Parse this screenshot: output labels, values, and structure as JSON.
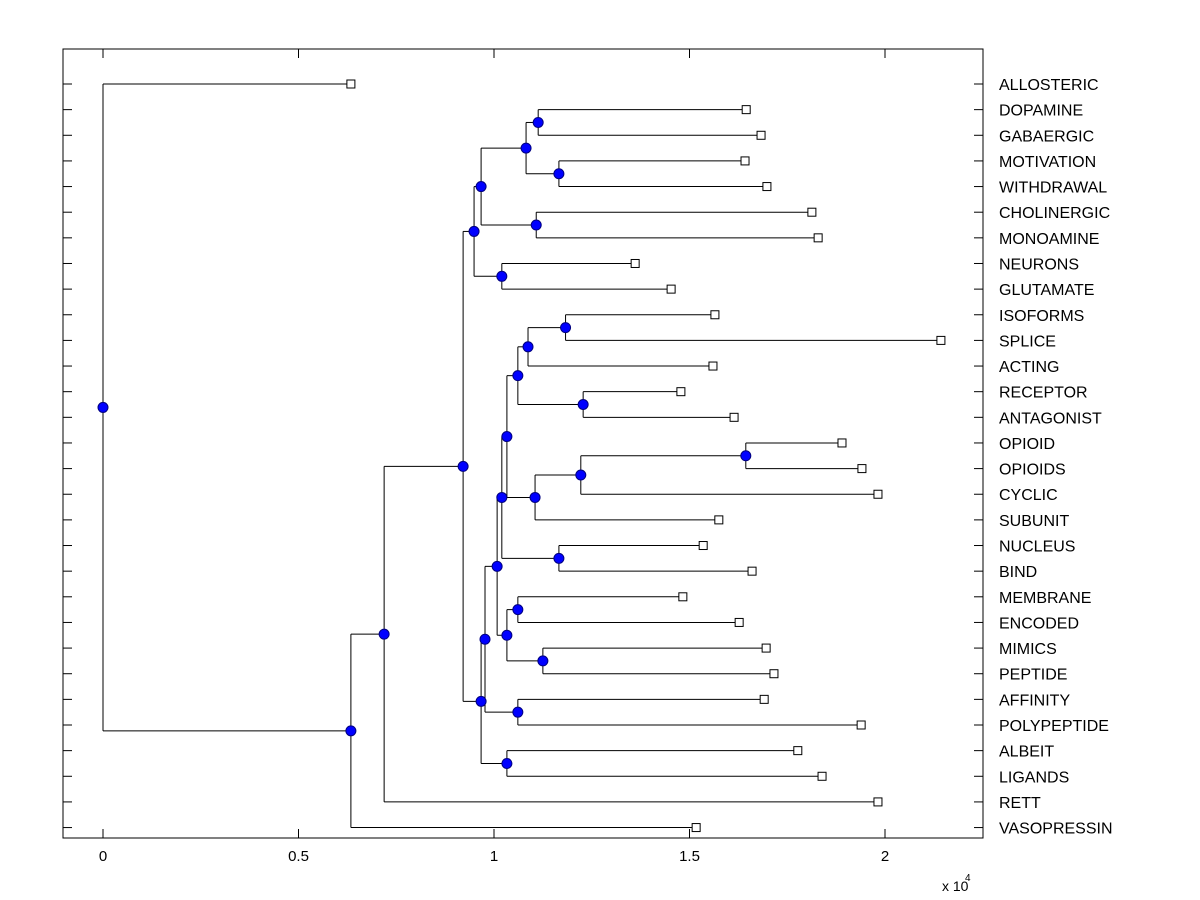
{
  "chart_data": {
    "type": "dendrogram",
    "title": "",
    "xlabel": "",
    "ylabel": "",
    "x_multiplier_label": "x 10",
    "x_multiplier_exponent": "4",
    "xlim": [
      -0.1,
      2.25
    ],
    "xticks": [
      0,
      0.5,
      1,
      1.5,
      2
    ],
    "xtick_labels": [
      "0",
      "0.5",
      "1",
      "1.5",
      "2"
    ],
    "grid": false,
    "colors": {
      "node_fill": "#0000ff",
      "node_edge": "#000080",
      "line": "#000000",
      "leaf_fill": "#ffffff"
    },
    "leaves": [
      {
        "label": "ALLOSTERIC",
        "x": 0.634
      },
      {
        "label": "DOPAMINE",
        "x": 1.645
      },
      {
        "label": "GABAERGIC",
        "x": 1.683
      },
      {
        "label": "MOTIVATION",
        "x": 1.642
      },
      {
        "label": "WITHDRAWAL",
        "x": 1.698
      },
      {
        "label": "CHOLINERGIC",
        "x": 1.813
      },
      {
        "label": "MONOAMINE",
        "x": 1.829
      },
      {
        "label": "NEURONS",
        "x": 1.361
      },
      {
        "label": "GLUTAMATE",
        "x": 1.453
      },
      {
        "label": "ISOFORMS",
        "x": 1.565
      },
      {
        "label": "SPLICE",
        "x": 2.143
      },
      {
        "label": "ACTING",
        "x": 1.56
      },
      {
        "label": "RECEPTOR",
        "x": 1.478
      },
      {
        "label": "ANTAGONIST",
        "x": 1.614
      },
      {
        "label": "OPIOID",
        "x": 1.89
      },
      {
        "label": "OPIOIDS",
        "x": 1.941
      },
      {
        "label": "CYCLIC",
        "x": 1.982
      },
      {
        "label": "SUBUNIT",
        "x": 1.575
      },
      {
        "label": "NUCLEUS",
        "x": 1.535
      },
      {
        "label": "BIND",
        "x": 1.66
      },
      {
        "label": "MEMBRANE",
        "x": 1.483
      },
      {
        "label": "ENCODED",
        "x": 1.627
      },
      {
        "label": "MIMICS",
        "x": 1.696
      },
      {
        "label": "PEPTIDE",
        "x": 1.716
      },
      {
        "label": "AFFINITY",
        "x": 1.691
      },
      {
        "label": "POLYPEPTIDE",
        "x": 1.939
      },
      {
        "label": "ALBEIT",
        "x": 1.777
      },
      {
        "label": "LIGANDS",
        "x": 1.839
      },
      {
        "label": "RETT",
        "x": 1.982
      },
      {
        "label": "VASOPRESSIN",
        "x": 1.517
      }
    ],
    "nodes": [
      {
        "id": "n_dop_gab",
        "x": 1.113,
        "children": [
          "L1",
          "L2"
        ]
      },
      {
        "id": "n_mot_with",
        "x": 1.166,
        "children": [
          "L3",
          "L4"
        ]
      },
      {
        "id": "n_a",
        "x": 1.082,
        "children": [
          "n_dop_gab",
          "n_mot_with"
        ]
      },
      {
        "id": "n_chol_mono",
        "x": 1.108,
        "children": [
          "L5",
          "L6"
        ]
      },
      {
        "id": "n_b",
        "x": 0.967,
        "children": [
          "n_a",
          "n_chol_mono"
        ]
      },
      {
        "id": "n_neu_glu",
        "x": 1.02,
        "children": [
          "L7",
          "L8"
        ]
      },
      {
        "id": "n_c",
        "x": 0.949,
        "children": [
          "n_b",
          "n_neu_glu"
        ]
      },
      {
        "id": "n_iso_spl",
        "x": 1.183,
        "children": [
          "L9",
          "L10"
        ]
      },
      {
        "id": "n_d",
        "x": 1.087,
        "children": [
          "n_iso_spl",
          "L11"
        ]
      },
      {
        "id": "n_rec_ant",
        "x": 1.228,
        "children": [
          "L12",
          "L13"
        ]
      },
      {
        "id": "n_e",
        "x": 1.061,
        "children": [
          "n_d",
          "n_rec_ant"
        ]
      },
      {
        "id": "n_op_ops",
        "x": 1.644,
        "children": [
          "L14",
          "L15"
        ]
      },
      {
        "id": "n_f",
        "x": 1.222,
        "children": [
          "n_op_ops",
          "L16"
        ]
      },
      {
        "id": "n_g",
        "x": 1.105,
        "children": [
          "n_f",
          "L17"
        ]
      },
      {
        "id": "n_h",
        "x": 1.033,
        "children": [
          "n_e",
          "n_g"
        ]
      },
      {
        "id": "n_nuc_bind",
        "x": 1.166,
        "children": [
          "L18",
          "L19"
        ]
      },
      {
        "id": "n_i",
        "x": 1.02,
        "children": [
          "n_h",
          "n_nuc_bind"
        ]
      },
      {
        "id": "n_mem_enc",
        "x": 1.061,
        "children": [
          "L20",
          "L21"
        ]
      },
      {
        "id": "n_mim_pep",
        "x": 1.125,
        "children": [
          "L22",
          "L23"
        ]
      },
      {
        "id": "n_j",
        "x": 1.033,
        "children": [
          "n_mem_enc",
          "n_mim_pep"
        ]
      },
      {
        "id": "n_k",
        "x": 1.008,
        "children": [
          "n_i",
          "n_j"
        ]
      },
      {
        "id": "n_aff_poly",
        "x": 1.061,
        "children": [
          "L24",
          "L25"
        ]
      },
      {
        "id": "n_l",
        "x": 0.977,
        "children": [
          "n_k",
          "n_aff_poly"
        ]
      },
      {
        "id": "n_alb_lig",
        "x": 1.033,
        "children": [
          "L26",
          "L27"
        ]
      },
      {
        "id": "n_m",
        "x": 0.967,
        "children": [
          "n_l",
          "n_alb_lig"
        ]
      },
      {
        "id": "n_n",
        "x": 0.921,
        "children": [
          "n_c",
          "n_m"
        ]
      },
      {
        "id": "n_o",
        "x": 0.719,
        "children": [
          "n_n",
          "L28"
        ]
      },
      {
        "id": "n_p",
        "x": 0.634,
        "children": [
          "n_o",
          "L29"
        ]
      },
      {
        "id": "n_root",
        "x": 0.0,
        "children": [
          "L0",
          "n_p"
        ]
      }
    ]
  }
}
